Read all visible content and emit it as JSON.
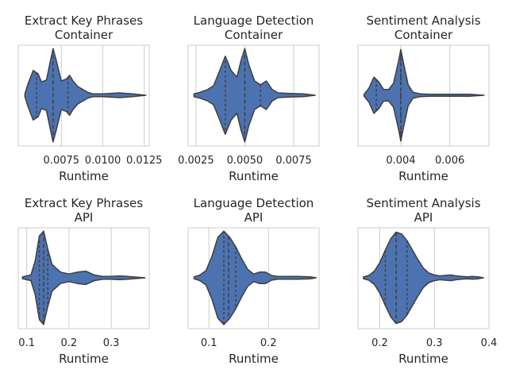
{
  "palette": {
    "violin_fill": "#4c72b0",
    "violin_edge": "#3f3f3f",
    "grid": "#cccccc",
    "frame": "#cccccc"
  },
  "chart_data": [
    {
      "type": "violin",
      "title": "Extract Key Phrases",
      "subtitle": "Container",
      "xlabel": "Runtime",
      "xlim": [
        0.0049,
        0.0128
      ],
      "xticks": [
        0.0075,
        0.01,
        0.0125
      ],
      "xtick_labels": [
        "0.0075",
        "0.0100",
        "0.0125"
      ],
      "grid": true,
      "density_x": [
        0.0053,
        0.0055,
        0.0058,
        0.0061,
        0.0063,
        0.0066,
        0.0069,
        0.007,
        0.0072,
        0.0075,
        0.0078,
        0.008,
        0.0082,
        0.0085,
        0.0088,
        0.0091,
        0.0094,
        0.01,
        0.011,
        0.0118,
        0.0126
      ],
      "density_w": [
        0.03,
        0.25,
        0.52,
        0.45,
        0.28,
        0.32,
        0.82,
        0.98,
        0.72,
        0.3,
        0.34,
        0.42,
        0.3,
        0.18,
        0.12,
        0.06,
        0.03,
        0.03,
        0.05,
        0.03,
        0.0
      ],
      "quartiles": [
        0.006,
        0.007,
        0.0079
      ]
    },
    {
      "type": "violin",
      "title": "Language Detection",
      "subtitle": "Container",
      "xlabel": "Runtime",
      "xlim": [
        0.0021,
        0.0088
      ],
      "xticks": [
        0.0025,
        0.005,
        0.0075
      ],
      "xtick_labels": [
        "0.0025",
        "0.0050",
        "0.0075"
      ],
      "grid": true,
      "density_x": [
        0.0024,
        0.0027,
        0.0031,
        0.0034,
        0.0037,
        0.004,
        0.0043,
        0.0046,
        0.0048,
        0.005,
        0.0052,
        0.0055,
        0.0058,
        0.0061,
        0.0064,
        0.0067,
        0.0072,
        0.008,
        0.0086
      ],
      "density_w": [
        0.03,
        0.06,
        0.12,
        0.2,
        0.5,
        0.82,
        0.52,
        0.38,
        0.72,
        0.98,
        0.65,
        0.3,
        0.22,
        0.3,
        0.12,
        0.05,
        0.04,
        0.03,
        0.0
      ],
      "quartiles": [
        0.004,
        0.005,
        0.0058
      ]
    },
    {
      "type": "violin",
      "title": "Sentiment Analysis",
      "subtitle": "Container",
      "xlabel": "Runtime",
      "xlim": [
        0.00225,
        0.0076
      ],
      "xticks": [
        0.004,
        0.006
      ],
      "xtick_labels": [
        "0.004",
        "0.006"
      ],
      "grid": true,
      "density_x": [
        0.0025,
        0.0027,
        0.0029,
        0.0031,
        0.0033,
        0.0035,
        0.0037,
        0.0039,
        0.004,
        0.0041,
        0.0043,
        0.0045,
        0.0048,
        0.0052,
        0.006,
        0.0068,
        0.0074
      ],
      "density_w": [
        0.02,
        0.15,
        0.38,
        0.28,
        0.12,
        0.12,
        0.25,
        0.7,
        0.96,
        0.7,
        0.22,
        0.06,
        0.03,
        0.02,
        0.02,
        0.02,
        0.0
      ],
      "quartiles": [
        0.003,
        0.004,
        0.004
      ]
    },
    {
      "type": "violin",
      "title": "Extract Key Phrases",
      "subtitle": "API",
      "xlabel": "Runtime",
      "xlim": [
        0.08,
        0.39
      ],
      "xticks": [
        0.1,
        0.2,
        0.3
      ],
      "xtick_labels": [
        "0.1",
        "0.2",
        "0.3"
      ],
      "grid": true,
      "density_x": [
        0.09,
        0.11,
        0.12,
        0.13,
        0.14,
        0.15,
        0.16,
        0.18,
        0.2,
        0.22,
        0.24,
        0.26,
        0.28,
        0.3,
        0.32,
        0.34,
        0.38
      ],
      "density_w": [
        0.02,
        0.06,
        0.35,
        0.88,
        0.98,
        0.6,
        0.28,
        0.12,
        0.08,
        0.12,
        0.14,
        0.06,
        0.03,
        0.03,
        0.04,
        0.03,
        0.0
      ],
      "quartiles": [
        0.13,
        0.14,
        0.15
      ]
    },
    {
      "type": "violin",
      "title": "Language Detection",
      "subtitle": "API",
      "xlabel": "Runtime",
      "xlim": [
        0.065,
        0.285
      ],
      "xticks": [
        0.1,
        0.2
      ],
      "xtick_labels": [
        "0.1",
        "0.2"
      ],
      "grid": true,
      "density_x": [
        0.075,
        0.085,
        0.095,
        0.105,
        0.115,
        0.125,
        0.135,
        0.145,
        0.155,
        0.165,
        0.175,
        0.185,
        0.195,
        0.205,
        0.215,
        0.23,
        0.25,
        0.27,
        0.28
      ],
      "density_w": [
        0.02,
        0.06,
        0.15,
        0.45,
        0.85,
        0.98,
        0.85,
        0.65,
        0.4,
        0.18,
        0.08,
        0.12,
        0.12,
        0.05,
        0.03,
        0.03,
        0.03,
        0.02,
        0.0
      ],
      "quartiles": [
        0.125,
        0.133,
        0.145
      ]
    },
    {
      "type": "violin",
      "title": "Sentiment Analysis",
      "subtitle": "API",
      "xlabel": "Runtime",
      "xlim": [
        0.16,
        0.4
      ],
      "xticks": [
        0.2,
        0.3,
        0.4
      ],
      "xtick_labels": [
        "0.2",
        "0.3",
        "0.4"
      ],
      "grid": true,
      "density_x": [
        0.17,
        0.18,
        0.19,
        0.2,
        0.21,
        0.22,
        0.23,
        0.24,
        0.25,
        0.26,
        0.27,
        0.28,
        0.29,
        0.3,
        0.31,
        0.32,
        0.33,
        0.34,
        0.35,
        0.36,
        0.37,
        0.38,
        0.39
      ],
      "density_w": [
        0.02,
        0.05,
        0.14,
        0.32,
        0.58,
        0.82,
        0.96,
        0.92,
        0.78,
        0.58,
        0.38,
        0.2,
        0.1,
        0.06,
        0.04,
        0.05,
        0.06,
        0.04,
        0.03,
        0.02,
        0.03,
        0.02,
        0.0
      ],
      "quartiles": [
        0.21,
        0.23,
        0.25
      ]
    }
  ]
}
